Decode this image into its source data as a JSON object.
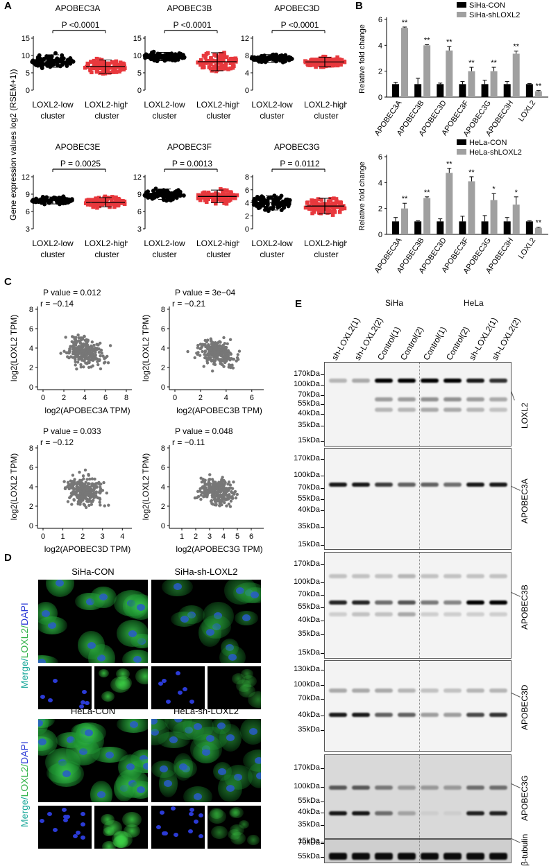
{
  "panels": {
    "A": "A",
    "B": "B",
    "C": "C",
    "D": "D",
    "E": "E"
  },
  "panel_a": {
    "ylabel": "Gene expression values log2 (RSEM+1))",
    "group_low": [
      "LOXL2-low",
      "cluster"
    ],
    "group_high": [
      "LOXL2-high",
      "cluster"
    ],
    "plots": [
      {
        "title": "APOBEC3A",
        "p": "P <0.0001",
        "ticks": [
          "15",
          "10",
          "5",
          "0"
        ],
        "low_mean": 8.4,
        "high_mean": 6.8,
        "low_sd": 1.8,
        "high_sd": 1.9
      },
      {
        "title": "APOBEC3B",
        "p": "P <0.0001",
        "ticks": [
          "15",
          "10",
          "5",
          "0"
        ],
        "low_mean": 9.7,
        "high_mean": 8.2,
        "low_sd": 1.2,
        "high_sd": 2.6
      },
      {
        "title": "APOBEC3D",
        "p": "P <0.0001",
        "ticks": [
          "12",
          "8",
          "4",
          "0"
        ],
        "low_mean": 7.3,
        "high_mean": 6.5,
        "low_sd": 0.9,
        "high_sd": 1.1
      },
      {
        "title": "APOBEC3E",
        "p": "P = 0.0025",
        "ticks": [
          "12",
          "9",
          "6",
          "3"
        ],
        "low_mean": 7.9,
        "high_mean": 7.6,
        "low_sd": 0.6,
        "high_sd": 0.8
      },
      {
        "title": "APOBEC3F",
        "p": "P = 0.0013",
        "ticks": [
          "12",
          "9",
          "6",
          "3"
        ],
        "low_mean": 9.0,
        "high_mean": 8.6,
        "low_sd": 0.9,
        "high_sd": 1.1
      },
      {
        "title": "APOBEC3G",
        "p": "P = 0.0112",
        "ticks": [
          "8",
          "6",
          "4",
          "2",
          "0"
        ],
        "low_mean": 4.0,
        "high_mean": 3.5,
        "low_sd": 1.1,
        "high_sd": 1.2
      }
    ]
  },
  "chart_data": [
    {
      "type": "bar",
      "ylabel": "Relative fold change",
      "ylim": [
        0,
        6
      ],
      "yticks": [
        "6",
        "4",
        "2",
        "0"
      ],
      "categories": [
        "APOBEC3A",
        "APOBEC3B",
        "APOBEC3D",
        "APOBEC3F",
        "APOBEC3G",
        "APOBEC3H",
        "LOXL2"
      ],
      "series": [
        {
          "name": "SiHa-CON",
          "color": "#000000",
          "values": [
            1,
            1,
            1,
            1,
            1,
            1,
            1
          ],
          "err": [
            0.15,
            0.45,
            0.08,
            0.2,
            0.3,
            0.2,
            0.04
          ]
        },
        {
          "name": "SiHa-shLOXL2",
          "color": "#a0a0a0",
          "values": [
            5.35,
            4.0,
            3.6,
            2.0,
            2.0,
            3.35,
            0.45
          ],
          "err": [
            0.06,
            0.05,
            0.3,
            0.3,
            0.3,
            0.2,
            0.05
          ]
        }
      ],
      "stars": [
        "**",
        "**",
        "**",
        "**",
        "**",
        "**",
        "**"
      ]
    },
    {
      "type": "bar",
      "ylabel": "Relative fold change",
      "ylim": [
        0,
        6
      ],
      "yticks": [
        "6",
        "4",
        "2",
        "0"
      ],
      "categories": [
        "APOBEC3A",
        "APOBEC3B",
        "APOBEC3D",
        "APOBEC3F",
        "APOBEC3G",
        "APOBEC3H",
        "LOXL2"
      ],
      "series": [
        {
          "name": "HeLa-CON",
          "color": "#000000",
          "values": [
            1,
            1,
            1,
            1,
            1,
            1,
            1
          ],
          "err": [
            0.3,
            0.05,
            0.2,
            0.4,
            0.45,
            0.3,
            0.05
          ]
        },
        {
          "name": "HeLa-shLOXL2",
          "color": "#a0a0a0",
          "values": [
            2.0,
            2.8,
            4.75,
            4.1,
            2.65,
            2.3,
            0.5
          ],
          "err": [
            0.4,
            0.1,
            0.35,
            0.35,
            0.5,
            0.6,
            0.05
          ]
        }
      ],
      "stars": [
        "**",
        "**",
        "**",
        "**",
        "*",
        "*",
        "**"
      ]
    }
  ],
  "panel_c": {
    "ylabel": "log2(LOXL2 TPM)",
    "yticks": [
      "8",
      "6",
      "4",
      "2",
      "0"
    ],
    "plots": [
      {
        "p": "P value = 0.012",
        "r": "r = −0.14",
        "xlabel": "log2(APOBEC3A TPM)",
        "xticks": [
          "0",
          "2",
          "4",
          "6",
          "8"
        ]
      },
      {
        "p": "P value = 3e−04",
        "r": "r = −0.21",
        "xlabel": "log2(APOBEC3B TPM)",
        "xticks": [
          "0",
          "2",
          "4",
          "6"
        ]
      },
      {
        "p": "P value = 0.033",
        "r": "r = −0.12",
        "xlabel": "log2(APOBEC3D TPM)",
        "xticks": [
          "0",
          "1",
          "2",
          "3",
          "4"
        ]
      },
      {
        "p": "P value = 0.048",
        "r": "r = −0.11",
        "xlabel": "log2(APOBEC3G TPM)",
        "xticks": [
          "1",
          "2",
          "3",
          "4",
          "5",
          "6"
        ]
      }
    ]
  },
  "panel_d": {
    "titles": [
      "SiHa-CON",
      "SiHa-sh-LOXL2",
      "HeLa-CON",
      "HeLa-sh-LOXL2"
    ],
    "side_label": {
      "merge": "Merge/",
      "loxl2": "LOXL2/",
      "dapi": "DAPI"
    }
  },
  "panel_e": {
    "cell_lines": [
      "SiHa",
      "HeLa"
    ],
    "lanes": [
      "sh-LOXL2(1)",
      "sh-LOXL2(2)",
      "Control(1)",
      "Control(2)",
      "Control(1)",
      "Control(2)",
      "sh-LOXL2(1)",
      "sh-LOXL2(2)"
    ],
    "blots": [
      {
        "target": "LOXL2",
        "markers": [
          "170kDa",
          "100kDa",
          "70kDa",
          "55kDa",
          "40kDa",
          "35kDa",
          "15kDa"
        ]
      },
      {
        "target": "APOBEC3A",
        "markers": [
          "170kDa",
          "100kDa",
          "70kDa",
          "55kDa",
          "40kDa",
          "35kDa",
          "15kDa"
        ]
      },
      {
        "target": "APOBEC3B",
        "markers": [
          "170kDa",
          "100kDa",
          "70kDa",
          "55kDa",
          "40kDa",
          "35kDa",
          "15kDa"
        ]
      },
      {
        "target": "APOBEC3D",
        "markers": [
          "130kDa",
          "100kDa",
          "70kDa",
          "40kDa",
          "35kDa"
        ]
      },
      {
        "target": "APOBEC3G",
        "markers": [
          "170kDa",
          "100kDa",
          "55kDa",
          "40kDa",
          "35kDa",
          "15kDa"
        ]
      },
      {
        "target": "β-tubulin",
        "markers": [
          "70kDa",
          "55kDa"
        ]
      }
    ]
  },
  "colors": {
    "red": "#e8383d",
    "grey_bar": "#a0a0a0",
    "green": "#33b34a",
    "blue": "#2b3bd6",
    "cyan_label": "#1aa89a"
  }
}
